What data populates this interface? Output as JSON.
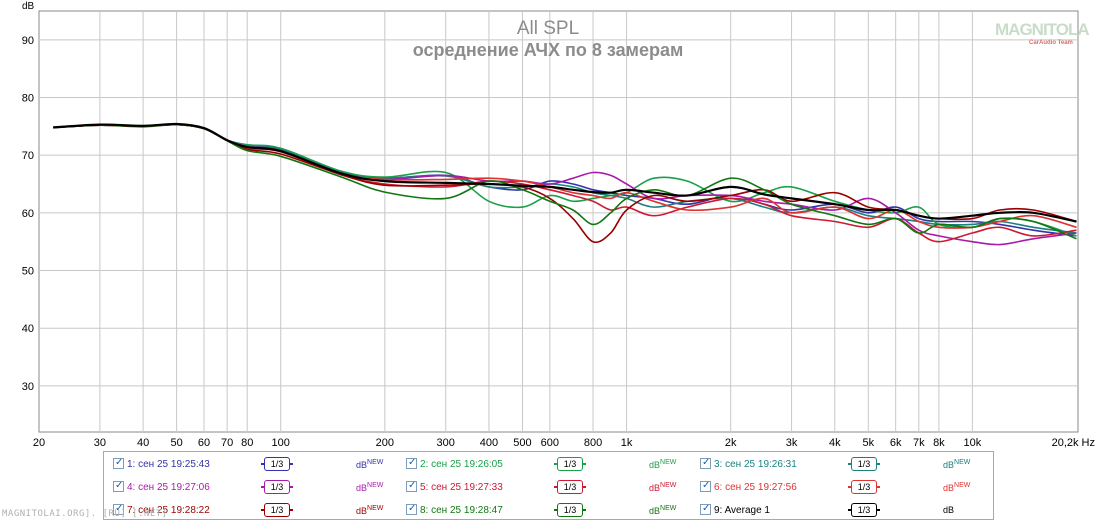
{
  "chart_data": {
    "type": "line",
    "title": "All SPL",
    "subtitle": "осреднение АЧХ по 8 замерам",
    "ylabel": "dB",
    "xlabel": "Hz",
    "x_scale": "log",
    "xlim": [
      20,
      20200
    ],
    "ylim": [
      22,
      95
    ],
    "grid": true,
    "y_ticks": [
      30,
      40,
      50,
      60,
      70,
      80,
      90
    ],
    "x_ticks": [
      {
        "v": 20,
        "label": "20"
      },
      {
        "v": 30,
        "label": "30"
      },
      {
        "v": 40,
        "label": "40"
      },
      {
        "v": 50,
        "label": "50"
      },
      {
        "v": 60,
        "label": "60"
      },
      {
        "v": 70,
        "label": "70"
      },
      {
        "v": 80,
        "label": "80"
      },
      {
        "v": 100,
        "label": "100"
      },
      {
        "v": 200,
        "label": "200"
      },
      {
        "v": 300,
        "label": "300"
      },
      {
        "v": 400,
        "label": "400"
      },
      {
        "v": 500,
        "label": "500"
      },
      {
        "v": 600,
        "label": "600"
      },
      {
        "v": 800,
        "label": "800"
      },
      {
        "v": 1000,
        "label": "1k"
      },
      {
        "v": 2000,
        "label": "2k"
      },
      {
        "v": 3000,
        "label": "3k"
      },
      {
        "v": 4000,
        "label": "4k"
      },
      {
        "v": 5000,
        "label": "5k"
      },
      {
        "v": 6000,
        "label": "6k"
      },
      {
        "v": 7000,
        "label": "7k"
      },
      {
        "v": 8000,
        "label": "8k"
      },
      {
        "v": 10000,
        "label": "10k"
      },
      {
        "v": 20200,
        "label": "20,2k Hz"
      }
    ],
    "series": [
      {
        "name": "1: сен 25 19:25:43",
        "color": "#3333aa",
        "x": [
          22,
          30,
          40,
          50,
          60,
          70,
          80,
          100,
          150,
          200,
          300,
          400,
          500,
          600,
          700,
          800,
          900,
          1000,
          1200,
          1500,
          2000,
          2500,
          3000,
          4000,
          5000,
          6000,
          7000,
          8000,
          10000,
          12000,
          15000,
          20000
        ],
        "y": [
          74.8,
          75.3,
          75.0,
          75.4,
          74.6,
          72.6,
          71.8,
          71.0,
          67.0,
          66.0,
          66.5,
          64.5,
          64.0,
          65.5,
          65.0,
          64.0,
          63.5,
          63.0,
          62.5,
          61.5,
          63.0,
          61.5,
          60.5,
          61.5,
          60.0,
          61.0,
          59.0,
          58.5,
          58.5,
          58.0,
          57.0,
          56.0
        ]
      },
      {
        "name": "2: сен 25 19:26:05",
        "color": "#1aa04a",
        "x": [
          22,
          30,
          40,
          50,
          60,
          70,
          80,
          100,
          150,
          200,
          300,
          400,
          500,
          600,
          700,
          800,
          900,
          1000,
          1200,
          1500,
          2000,
          2500,
          3000,
          4000,
          5000,
          6000,
          7000,
          8000,
          10000,
          12000,
          15000,
          20000
        ],
        "y": [
          74.8,
          75.2,
          74.9,
          75.3,
          74.6,
          72.6,
          71.8,
          71.2,
          67.2,
          66.2,
          67.0,
          62.0,
          61.0,
          63.0,
          62.0,
          62.5,
          63.0,
          63.5,
          66.0,
          65.5,
          62.0,
          63.5,
          64.5,
          62.0,
          60.5,
          60.0,
          61.0,
          58.0,
          57.5,
          59.0,
          58.5,
          56.0
        ]
      },
      {
        "name": "3: сен 25 19:26:31",
        "color": "#1a8080",
        "x": [
          22,
          30,
          40,
          50,
          60,
          70,
          80,
          100,
          150,
          200,
          300,
          400,
          500,
          600,
          700,
          800,
          900,
          1000,
          1200,
          1500,
          2000,
          2500,
          3000,
          4000,
          5000,
          6000,
          7000,
          8000,
          10000,
          12000,
          15000,
          20000
        ],
        "y": [
          74.9,
          75.2,
          75.0,
          75.3,
          74.6,
          72.6,
          71.6,
          71.0,
          66.8,
          66.0,
          66.4,
          64.5,
          64.5,
          65.0,
          64.5,
          63.5,
          63.0,
          62.5,
          61.0,
          62.0,
          62.5,
          61.0,
          60.0,
          61.0,
          59.5,
          59.0,
          58.5,
          58.0,
          58.0,
          58.5,
          57.5,
          56.5
        ]
      },
      {
        "name": "4: сен 25 19:27:06",
        "color": "#aa1aaa",
        "x": [
          22,
          30,
          40,
          50,
          60,
          70,
          80,
          100,
          150,
          200,
          300,
          400,
          500,
          600,
          700,
          800,
          900,
          1000,
          1200,
          1500,
          2000,
          2500,
          3000,
          4000,
          5000,
          6000,
          7000,
          8000,
          10000,
          12000,
          15000,
          20000
        ],
        "y": [
          74.8,
          75.2,
          75.0,
          75.3,
          74.6,
          72.6,
          71.5,
          70.8,
          66.6,
          65.8,
          66.5,
          65.5,
          65.5,
          65.0,
          66.0,
          67.0,
          66.5,
          65.0,
          62.5,
          63.0,
          63.0,
          62.0,
          61.5,
          60.5,
          62.5,
          60.0,
          57.0,
          56.0,
          55.0,
          54.5,
          55.5,
          56.5
        ]
      },
      {
        "name": "5: сен 25 19:27:33",
        "color": "#cc1a33",
        "x": [
          22,
          30,
          40,
          50,
          60,
          70,
          80,
          100,
          150,
          200,
          300,
          400,
          500,
          600,
          700,
          800,
          900,
          1000,
          1200,
          1500,
          2000,
          2500,
          3000,
          4000,
          5000,
          6000,
          7000,
          8000,
          10000,
          12000,
          15000,
          20000
        ],
        "y": [
          74.8,
          75.2,
          75.0,
          75.3,
          74.6,
          72.6,
          71.2,
          70.6,
          66.6,
          65.0,
          64.5,
          65.5,
          65.0,
          64.0,
          63.0,
          62.0,
          60.5,
          61.0,
          59.5,
          61.0,
          62.5,
          61.5,
          59.5,
          58.5,
          57.5,
          59.0,
          56.5,
          55.0,
          56.5,
          57.5,
          56.0,
          57.0
        ]
      },
      {
        "name": "6: сен 25 19:27:56",
        "color": "#dd3333",
        "x": [
          22,
          30,
          40,
          50,
          60,
          70,
          80,
          100,
          150,
          200,
          300,
          400,
          500,
          600,
          700,
          800,
          900,
          1000,
          1200,
          1500,
          2000,
          2500,
          3000,
          4000,
          5000,
          6000,
          7000,
          8000,
          10000,
          12000,
          15000,
          20000
        ],
        "y": [
          74.8,
          75.2,
          75.0,
          75.3,
          74.6,
          72.6,
          71.3,
          70.6,
          66.8,
          65.8,
          65.8,
          66.0,
          65.5,
          64.5,
          63.5,
          63.0,
          62.5,
          63.5,
          62.0,
          60.5,
          61.0,
          62.5,
          60.0,
          61.0,
          59.0,
          60.5,
          58.5,
          57.5,
          57.5,
          58.5,
          59.5,
          57.5
        ]
      },
      {
        "name": "7: сен 25 19:28:22",
        "color": "#990000",
        "x": [
          22,
          30,
          40,
          50,
          60,
          70,
          80,
          100,
          150,
          200,
          300,
          400,
          500,
          600,
          700,
          800,
          900,
          1000,
          1200,
          1500,
          2000,
          2500,
          3000,
          4000,
          5000,
          6000,
          7000,
          8000,
          10000,
          12000,
          15000,
          20000
        ],
        "y": [
          74.8,
          75.2,
          75.0,
          75.3,
          74.6,
          72.5,
          71.0,
          70.2,
          66.6,
          64.8,
          64.8,
          65.0,
          64.5,
          62.5,
          59.0,
          55.0,
          56.5,
          60.5,
          63.0,
          62.0,
          63.0,
          64.0,
          62.0,
          63.5,
          61.0,
          60.5,
          59.5,
          59.0,
          59.0,
          60.5,
          60.5,
          58.5
        ]
      },
      {
        "name": "8: сен 25 19:28:47",
        "color": "#117711",
        "x": [
          22,
          30,
          40,
          50,
          60,
          70,
          80,
          100,
          150,
          200,
          300,
          400,
          500,
          600,
          700,
          800,
          900,
          1000,
          1200,
          1500,
          2000,
          2500,
          3000,
          4000,
          5000,
          6000,
          7000,
          8000,
          10000,
          12000,
          15000,
          20000
        ],
        "y": [
          74.8,
          75.2,
          75.0,
          75.3,
          74.6,
          72.5,
          70.8,
          69.8,
          66.2,
          63.6,
          62.5,
          65.5,
          64.0,
          62.0,
          60.5,
          58.0,
          60.0,
          62.5,
          64.0,
          63.0,
          66.0,
          64.0,
          61.5,
          59.5,
          58.0,
          59.0,
          56.5,
          58.0,
          57.5,
          59.0,
          58.5,
          55.5
        ]
      },
      {
        "name": "9: Average 1",
        "color": "#000000",
        "x": [
          22,
          30,
          40,
          50,
          60,
          70,
          80,
          100,
          150,
          200,
          300,
          400,
          500,
          600,
          700,
          800,
          900,
          1000,
          1200,
          1500,
          2000,
          2500,
          3000,
          4000,
          5000,
          6000,
          7000,
          8000,
          10000,
          12000,
          15000,
          20000
        ],
        "y": [
          74.8,
          75.3,
          75.1,
          75.4,
          74.7,
          72.6,
          71.4,
          70.7,
          66.8,
          65.5,
          65.2,
          65.0,
          64.7,
          64.5,
          64.0,
          63.6,
          63.5,
          64.0,
          63.5,
          63.0,
          64.5,
          63.2,
          62.5,
          61.5,
          60.5,
          60.5,
          59.5,
          59.0,
          59.5,
          60.0,
          60.0,
          58.5
        ]
      }
    ]
  },
  "legend": {
    "items": [
      {
        "label": "1: сен 25 19:25:43",
        "color": "#3333aa",
        "smooth": "1/3",
        "unit": "dB",
        "unit_sup": "NEW"
      },
      {
        "label": "2: сен 25 19:26:05",
        "color": "#1aa04a",
        "smooth": "1/3",
        "unit": "dB",
        "unit_sup": "NEW"
      },
      {
        "label": "3: сен 25 19:26:31",
        "color": "#1a8080",
        "smooth": "1/3",
        "unit": "dB",
        "unit_sup": "NEW"
      },
      {
        "label": "4: сен 25 19:27:06",
        "color": "#aa1aaa",
        "smooth": "1/3",
        "unit": "dB",
        "unit_sup": "NEW"
      },
      {
        "label": "5: сен 25 19:27:33",
        "color": "#cc1a33",
        "smooth": "1/3",
        "unit": "dB",
        "unit_sup": "NEW"
      },
      {
        "label": "6: сен 25 19:27:56",
        "color": "#dd3333",
        "smooth": "1/3",
        "unit": "dB",
        "unit_sup": "NEW"
      },
      {
        "label": "7: сен 25 19:28:22",
        "color": "#990000",
        "smooth": "1/3",
        "unit": "dB",
        "unit_sup": "NEW"
      },
      {
        "label": "8: сен 25 19:28:47",
        "color": "#117711",
        "smooth": "1/3",
        "unit": "dB",
        "unit_sup": "NEW"
      },
      {
        "label": "9: Average 1",
        "color": "#000000",
        "smooth": "1/3",
        "unit": "dB",
        "unit_sup": ""
      }
    ]
  },
  "logo": {
    "main": "MAGNITOLA",
    "sub": "CarAudio Team"
  },
  "footer": "MAGNITOLAI.ORG]. [RU] [.NET]"
}
